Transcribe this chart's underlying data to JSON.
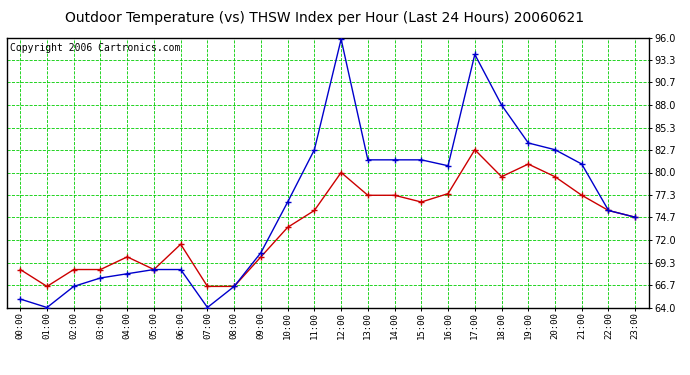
{
  "title": "Outdoor Temperature (vs) THSW Index per Hour (Last 24 Hours) 20060621",
  "copyright": "Copyright 2006 Cartronics.com",
  "hours": [
    "00:00",
    "01:00",
    "02:00",
    "03:00",
    "04:00",
    "05:00",
    "06:00",
    "07:00",
    "08:00",
    "09:00",
    "10:00",
    "11:00",
    "12:00",
    "13:00",
    "14:00",
    "15:00",
    "16:00",
    "17:00",
    "18:00",
    "19:00",
    "20:00",
    "21:00",
    "22:00",
    "23:00"
  ],
  "temp_red": [
    68.5,
    66.5,
    68.5,
    68.5,
    70.0,
    68.5,
    71.5,
    66.5,
    66.5,
    70.0,
    73.5,
    75.5,
    80.0,
    77.3,
    77.3,
    76.5,
    77.5,
    82.7,
    79.5,
    81.0,
    79.5,
    77.3,
    75.5,
    74.7
  ],
  "thsw_blue": [
    65.0,
    64.0,
    66.5,
    67.5,
    68.0,
    68.5,
    68.5,
    64.0,
    66.5,
    70.5,
    76.5,
    82.7,
    95.8,
    81.5,
    81.5,
    81.5,
    80.8,
    94.0,
    88.0,
    83.5,
    82.7,
    81.0,
    75.5,
    74.7
  ],
  "ylim": [
    64.0,
    96.0
  ],
  "yticks": [
    64.0,
    66.7,
    69.3,
    72.0,
    74.7,
    77.3,
    80.0,
    82.7,
    85.3,
    88.0,
    90.7,
    93.3,
    96.0
  ],
  "bg_color": "#ffffff",
  "plot_bg": "#ffffff",
  "grid_color": "#00cc00",
  "red_color": "#cc0000",
  "blue_color": "#0000cc",
  "title_fontsize": 10,
  "copyright_fontsize": 7
}
